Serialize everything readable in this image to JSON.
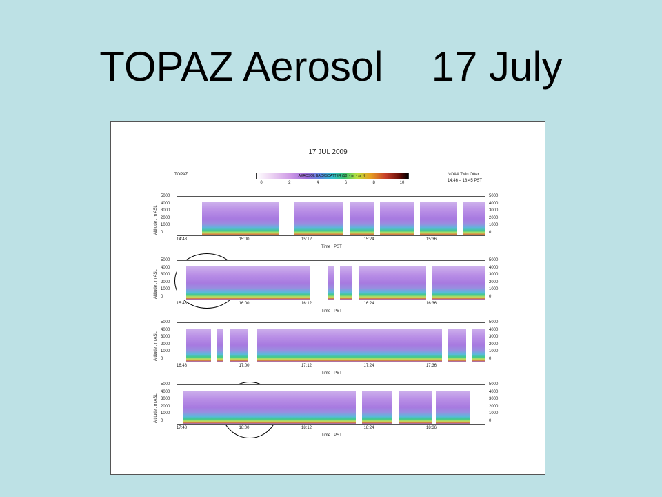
{
  "slide": {
    "title_part1": "TOPAZ Aerosol",
    "title_part2": "17 July"
  },
  "figure": {
    "date": "17 JUL 2009",
    "station": "TOPAZ",
    "source_line1": "NOAA Twin Otter",
    "source_line2": "14:46 – 18:45 PST",
    "colorbar": {
      "title": "AEROSOL BACKSCATTER (10⁻⁶ m⁻¹ sr⁻¹)",
      "ticks": [
        "0",
        "2",
        "4",
        "6",
        "8",
        "10"
      ]
    },
    "y_label": "Altitude , m ASL",
    "y_ticks": [
      "5000",
      "4000",
      "3000",
      "2000",
      "1000",
      "0"
    ],
    "x_label": "Time , PST",
    "panels": [
      {
        "x_ticks": [
          "14:48",
          "15:00",
          "15:12",
          "15:24",
          "15:36"
        ]
      },
      {
        "x_ticks": [
          "15:48",
          "16:00",
          "16:12",
          "16:24",
          "16:36"
        ]
      },
      {
        "x_ticks": [
          "16:48",
          "17:00",
          "17:12",
          "17:24",
          "17:36"
        ]
      },
      {
        "x_ticks": [
          "17:48",
          "18:00",
          "18:12",
          "18:24",
          "18:36"
        ]
      }
    ]
  }
}
